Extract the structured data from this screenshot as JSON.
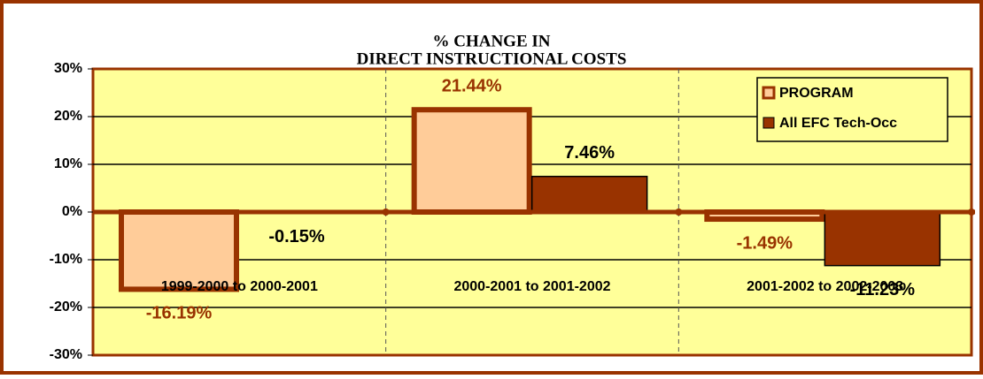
{
  "chart_data": {
    "type": "bar",
    "title": [
      "% CHANGE IN",
      "DIRECT INSTRUCTIONAL COSTS"
    ],
    "categories": [
      "1999-2000 to 2000-2001",
      "2000-2001 to 2001-2002",
      "2001-2002 to 2002-2003"
    ],
    "series": [
      {
        "name": "PROGRAM",
        "color": "#ffcc99",
        "values": [
          -16.19,
          21.44,
          -1.49
        ],
        "value_labels": [
          "-16.19%",
          "21.44%",
          "-1.49%"
        ]
      },
      {
        "name": "All EFC Tech-Occ",
        "color": "#993300",
        "values": [
          -0.15,
          7.46,
          -11.23
        ],
        "value_labels": [
          "-0.15%",
          "7.46%",
          "-11.23%"
        ]
      }
    ],
    "ylim": [
      -30,
      30
    ],
    "yticks": [
      {
        "value": -30,
        "label": "-30%"
      },
      {
        "value": -20,
        "label": "-20%"
      },
      {
        "value": -10,
        "label": "-10%"
      },
      {
        "value": 0,
        "label": "0%"
      },
      {
        "value": 10,
        "label": "10%"
      },
      {
        "value": 20,
        "label": "20%"
      },
      {
        "value": 30,
        "label": "30%"
      }
    ],
    "grid": true,
    "legend": "top-right"
  }
}
